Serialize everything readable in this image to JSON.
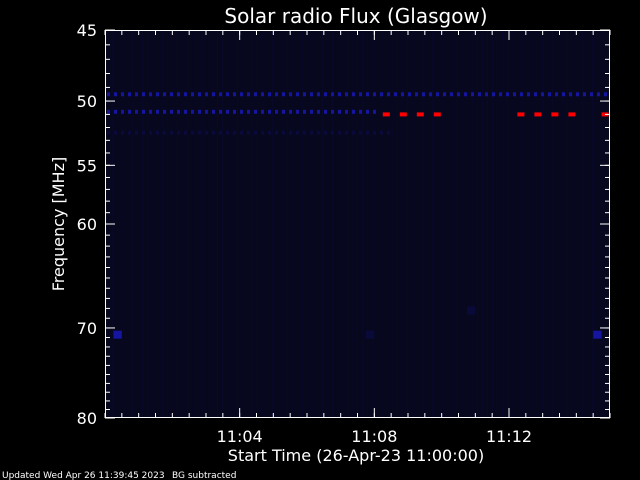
{
  "chart_data": {
    "type": "heatmap",
    "title": "Solar radio Flux (Glasgow)",
    "xlabel": "Start Time (26-Apr-23 11:00:00)",
    "ylabel": "Frequency [MHz]",
    "x_unit": "minutes",
    "xlim": [
      "11:00:00",
      "11:15:00"
    ],
    "ylim": [
      45,
      80
    ],
    "y_scale": "log",
    "y_inverted": true,
    "x_ticks": [
      {
        "value": "11:04",
        "label": "11:04"
      },
      {
        "value": "11:08",
        "label": "11:08"
      },
      {
        "value": "11:12",
        "label": "11:12"
      }
    ],
    "y_ticks": [
      {
        "value": 45,
        "label": "45"
      },
      {
        "value": 50,
        "label": "50"
      },
      {
        "value": 55,
        "label": "55"
      },
      {
        "value": 60,
        "label": "60"
      },
      {
        "value": 70,
        "label": "70"
      },
      {
        "value": 80,
        "label": "80"
      }
    ],
    "colors": {
      "background": "#000000",
      "plot_background": "#07071e",
      "low_intensity": "#0a0a3a",
      "medium_intensity": "#1515a0",
      "high_intensity": "#ff0000",
      "axes": "#ffffff"
    },
    "features": [
      {
        "kind": "band",
        "frequency": 49.5,
        "start": "11:00:00",
        "end": "11:15:00",
        "intensity": "medium"
      },
      {
        "kind": "band",
        "frequency": 50.8,
        "start": "11:00:00",
        "end": "11:08:00",
        "intensity": "medium"
      },
      {
        "kind": "band",
        "frequency": 52.4,
        "start": "11:00:00",
        "end": "11:08:30",
        "intensity": "low"
      },
      {
        "kind": "burst",
        "frequency": 51.0,
        "start": "11:08:15",
        "end": "11:10:15",
        "intensity": "high"
      },
      {
        "kind": "burst",
        "frequency": 51.0,
        "start": "11:12:15",
        "end": "11:14:00",
        "intensity": "high"
      },
      {
        "kind": "burst",
        "frequency": 51.0,
        "start": "11:14:45",
        "end": "11:15:00",
        "intensity": "high"
      },
      {
        "kind": "spot",
        "frequency": 70.7,
        "start": "11:00:15",
        "end": "11:00:30",
        "intensity": "medium"
      },
      {
        "kind": "spot",
        "frequency": 70.7,
        "start": "11:14:30",
        "end": "11:14:45",
        "intensity": "medium"
      },
      {
        "kind": "spot",
        "frequency": 70.7,
        "start": "11:07:45",
        "end": "11:08:00",
        "intensity": "low"
      },
      {
        "kind": "spot",
        "frequency": 68.2,
        "start": "11:10:45",
        "end": "11:11:00",
        "intensity": "low"
      }
    ]
  },
  "footer": {
    "updated": "Updated Wed Apr 26 11:39:45 2023",
    "note": "BG subtracted"
  }
}
